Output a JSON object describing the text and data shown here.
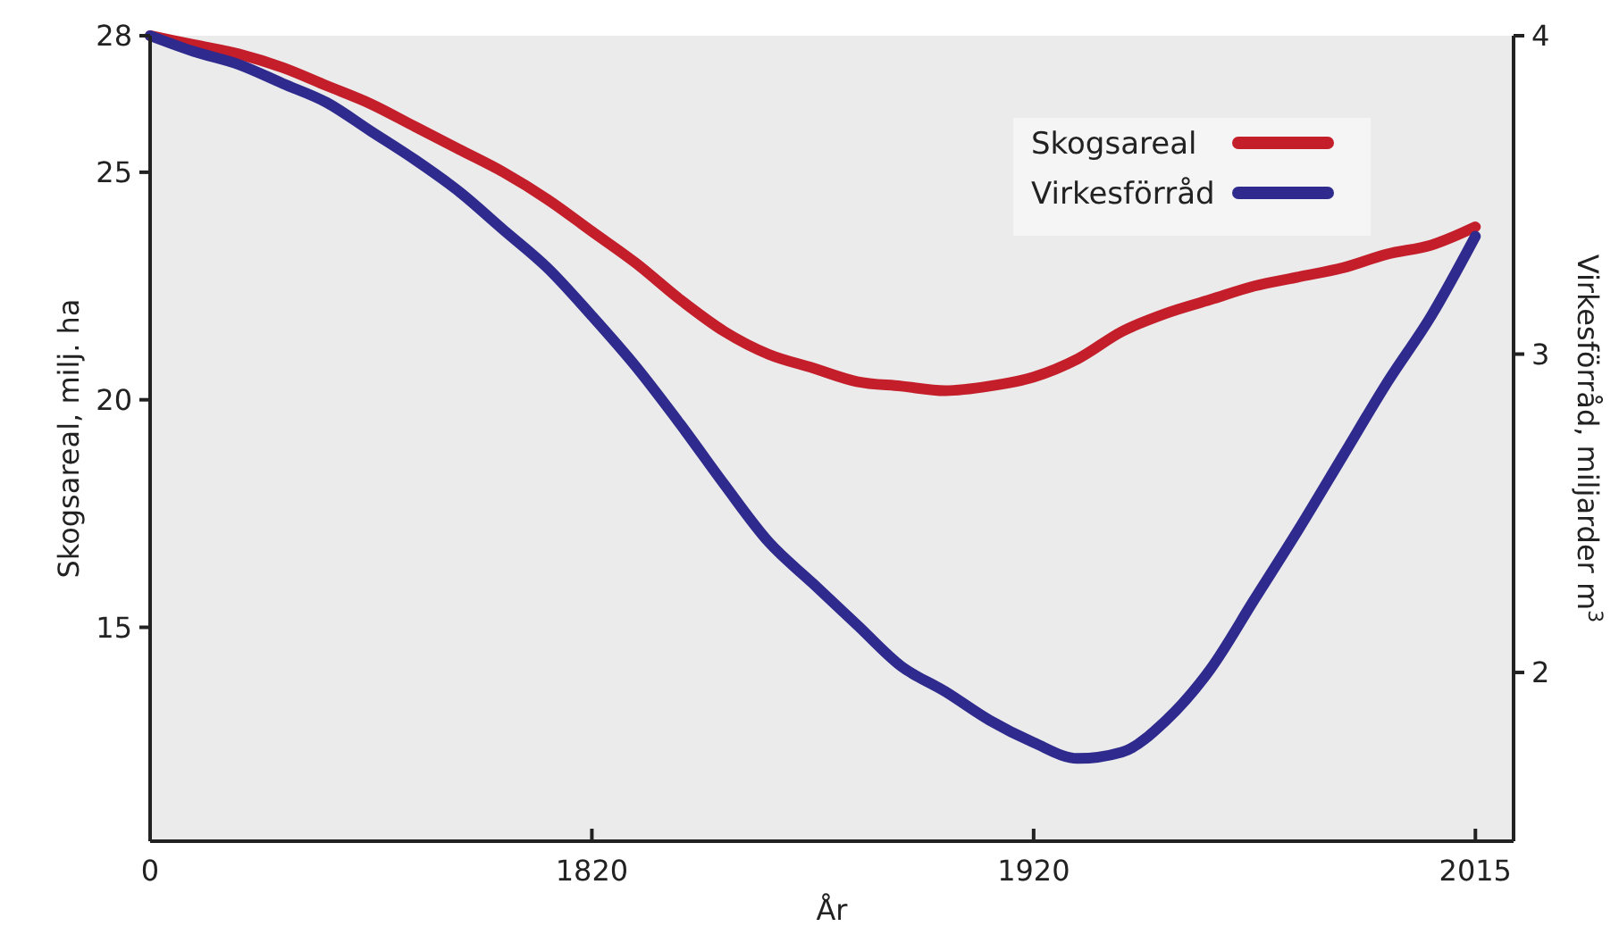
{
  "chart_data": {
    "type": "line",
    "xlabel": "År",
    "ylabel": "Skogsareal, milj. ha",
    "y2label": "Virkesförråd, miljarder m$^{3}$",
    "categories": [
      "0",
      null,
      null,
      null,
      null,
      null,
      null,
      null,
      null,
      null,
      "1820",
      null,
      null,
      null,
      null,
      null,
      null,
      null,
      null,
      null,
      "1920",
      null,
      null,
      null,
      null,
      null,
      null,
      null,
      null,
      null,
      "2015"
    ],
    "ylim": [
      10.3,
      28
    ],
    "yticks": [
      15,
      20,
      25,
      28
    ],
    "y2lim": [
      1.47,
      4
    ],
    "y2ticks": [
      2,
      3,
      4
    ],
    "legend": "top right",
    "grid": false,
    "series": [
      {
        "name": "Skogsareal",
        "color": "#c41e2a",
        "values": [
          28,
          27.8,
          27.6,
          27.3,
          26.9,
          26.5,
          26.0,
          25.5,
          25.0,
          24.4,
          23.7,
          23.0,
          22.2,
          21.5,
          21.0,
          20.7,
          20.4,
          20.3,
          20.2,
          20.3,
          20.5,
          20.9,
          21.5,
          21.9,
          22.2,
          22.5,
          22.7,
          22.9,
          23.2,
          23.4,
          23.8
        ]
      },
      {
        "name": "Virkesförråd",
        "color": "#2f2a8e",
        "axis": "y2",
        "values": [
          4.0,
          3.95,
          3.91,
          3.85,
          3.79,
          3.7,
          3.61,
          3.51,
          3.39,
          3.27,
          3.12,
          2.96,
          2.78,
          2.59,
          2.41,
          2.28,
          2.15,
          2.02,
          1.94,
          1.85,
          1.78,
          1.73,
          1.75,
          1.85,
          2.01,
          2.23,
          2.45,
          2.68,
          2.91,
          3.12,
          3.37
        ]
      }
    ]
  }
}
